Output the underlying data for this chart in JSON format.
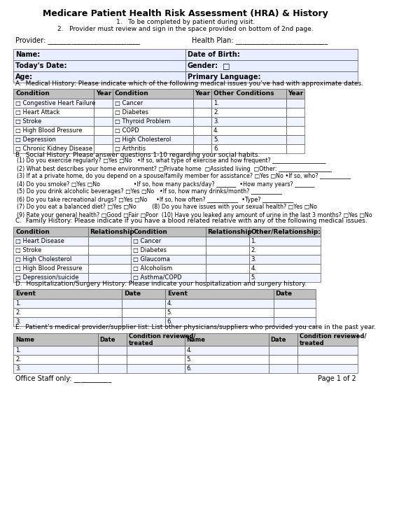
{
  "title": "Medicare Patient Health Risk Assessment (HRA) & History",
  "subtitle1": "1.   To be completed by patient during visit.",
  "subtitle2": "2.   Provider must review and sign in the space provided on bottom of 2nd page.",
  "bg_color": "#ffffff",
  "header_bg": "#c8c8c8",
  "row_bg_light": "#f0f4ff",
  "row_bg_white": "#ffffff",
  "border_color": "#555555",
  "section_label_color": "#000000",
  "provider_label": "Provider: ___________________________",
  "health_plan_label": "Health Plan: ___________________________",
  "basic_fields": [
    [
      "Name:",
      "",
      "Date of Birth:",
      ""
    ],
    [
      "Today's Date:",
      "",
      "Gender:",
      "□"
    ],
    [
      "Age:",
      "",
      "Primary Language:",
      ""
    ]
  ],
  "section_a_title": "A.  Medical History: Please indicate which of the following medical issues you’ve had with approximate dates.",
  "med_history_headers": [
    "Condition",
    "Year",
    "Condition",
    "Year",
    "Other Conditions",
    "Year"
  ],
  "med_history_rows": [
    [
      "□ Congestive Heart Failure",
      "",
      "□ Cancer",
      "",
      "1.",
      ""
    ],
    [
      "□ Heart Attack",
      "",
      "□ Diabetes",
      "",
      "2.",
      ""
    ],
    [
      "□ Stroke",
      "",
      "□ Thyroid Problem",
      "",
      "3.",
      ""
    ],
    [
      "□ High Blood Pressure",
      "",
      "□ COPD",
      "",
      "4.",
      ""
    ],
    [
      "□ Depression",
      "",
      "□ High Cholesterol",
      "",
      "5.",
      ""
    ],
    [
      "□ Chronic Kidney Disease",
      "",
      "□ Arthritis",
      "",
      "6.",
      ""
    ]
  ],
  "section_b_title": "B.  Social History: Please answer questions 1-10 regarding your social habits.",
  "social_questions": [
    "(1) Do you exercise regularly? □Yes □No   •If so, what type of exercise and how frequent? ___________________",
    "(2) What best describes your home environment? □Private home  □Assisted living  □Other: ___________________",
    "(3) If at a private home, do you depend on a spouse/family member for assistance? □Yes □No •If so, who? ___________",
    "(4) Do you smoke? □Yes □No                   •If so, how many packs/day? _______  •How many years? _______",
    "(5) Do you drink alcoholic beverages? □Yes □No   •If so, how many drinks/month? ___________",
    "(6) Do you take recreational drugs? □Yes □No     •If so, how often? ___________  •Type? ___________",
    "(7) Do you eat a balanced diet? □Yes □No         (8) Do you have issues with your sexual health? □Yes □No",
    "(9) Rate your general health? □Good □Fair □Poor  (10) Have you leaked any amount of urine in the last 3 months? □Yes □No"
  ],
  "section_c_title": "C.  Family History: Please indicate if you have a blood related relative with any of the following medical issues.",
  "family_headers": [
    "Condition",
    "Relationship",
    "Condition",
    "Relationship",
    "Other/Relationship:"
  ],
  "family_rows": [
    [
      "□ Heart Disease",
      "",
      "□ Cancer",
      "",
      "1."
    ],
    [
      "□ Stroke",
      "",
      "□ Diabetes",
      "",
      "2."
    ],
    [
      "□ High Cholesterol",
      "",
      "□ Glaucoma",
      "",
      "3."
    ],
    [
      "□ High Blood Pressure",
      "",
      "□ Alcoholism",
      "",
      "4."
    ],
    [
      "□ Depression/suicide",
      "",
      "□ Asthma/COPD",
      "",
      "5."
    ]
  ],
  "section_d_title": "D.  Hospitalization/Surgery History: Please indicate your hospitalization and surgery history.",
  "hosp_headers": [
    "Event",
    "Date",
    "Event",
    "Date"
  ],
  "hosp_rows": [
    [
      "1.",
      "",
      "4.",
      ""
    ],
    [
      "2.",
      "",
      "5.",
      ""
    ],
    [
      "3.",
      "",
      "6.",
      ""
    ]
  ],
  "section_e_title": "E.  Patient’s medical provider/supplier list: List other physicians/suppliers who provided you care in the past year.",
  "provider_headers": [
    "Name",
    "Date",
    "Condition reviewed/\ntreated",
    "Name",
    "Date",
    "Condition reviewed/\ntreated"
  ],
  "provider_rows": [
    [
      "1.",
      "",
      "",
      "4.",
      "",
      ""
    ],
    [
      "2.",
      "",
      "",
      "5.",
      "",
      ""
    ],
    [
      "3.",
      "",
      "",
      "6.",
      "",
      ""
    ]
  ],
  "footer_left": "Office Staff only: ___________",
  "footer_right": "Page 1 of 2"
}
